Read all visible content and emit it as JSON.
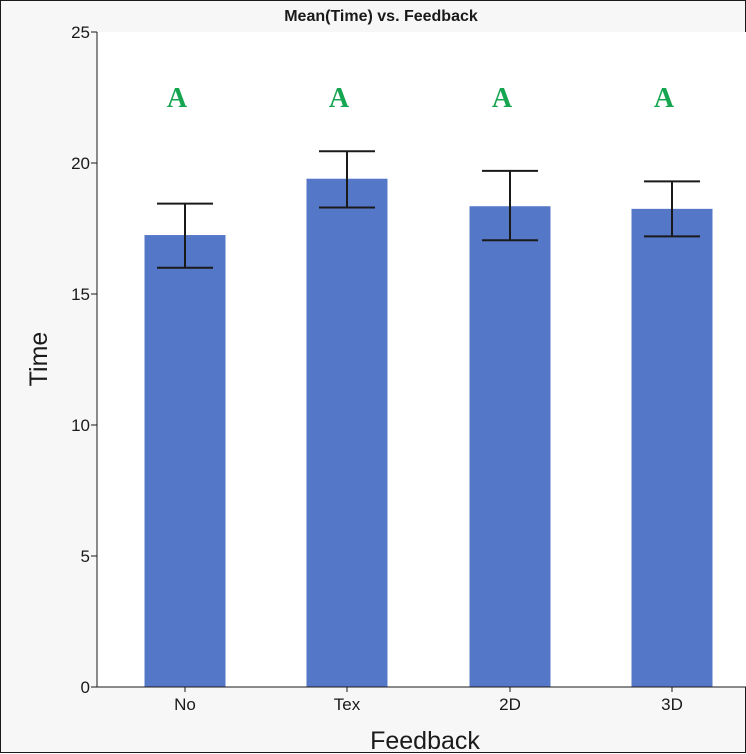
{
  "chart_data": {
    "type": "bar",
    "title": "Mean(Time) vs. Feedback",
    "xlabel": "Feedback",
    "ylabel": "Time",
    "categories": [
      "No",
      "Tex",
      "2D",
      "3D"
    ],
    "values": [
      17.25,
      19.4,
      18.35,
      18.25
    ],
    "error_low": [
      16.0,
      18.3,
      17.05,
      17.2
    ],
    "error_high": [
      18.45,
      20.45,
      19.7,
      19.3
    ],
    "group_letters": [
      "A",
      "A",
      "A",
      "A"
    ],
    "ylim": [
      0,
      25
    ],
    "yticks": [
      "0",
      "5",
      "10",
      "15",
      "20",
      "25"
    ],
    "grid": false,
    "colors": {
      "bar": "#5577c8",
      "error_bar": "#1a1a1a",
      "group_letter": "#16a550",
      "plot_background": "#ffffff",
      "frame_background": "#f7f7f7"
    }
  }
}
